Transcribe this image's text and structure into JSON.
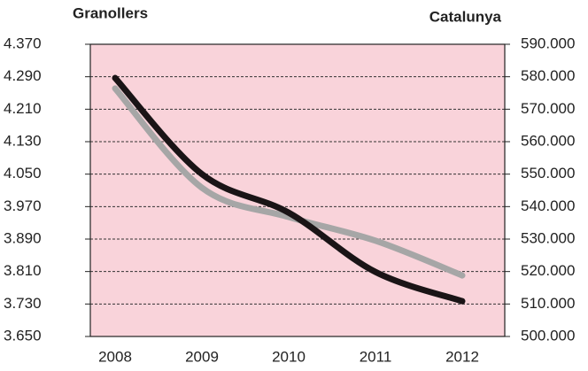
{
  "chart_data": {
    "type": "line",
    "categories": [
      "2008",
      "2009",
      "2010",
      "2011",
      "2012"
    ],
    "series": [
      {
        "name": "Granollers",
        "color": "#1a1416",
        "values": [
          4287,
          4050,
          3955,
          3809,
          3737
        ]
      },
      {
        "name": "Catalunya",
        "color": "#a6a6a6",
        "axis": "y2",
        "values": [
          576400,
          545800,
          536800,
          529500,
          518800
        ]
      }
    ],
    "ylim": [
      3650,
      4370
    ],
    "yticks": [
      {
        "value": 3650,
        "label": "3.650"
      },
      {
        "value": 3730,
        "label": "3.730"
      },
      {
        "value": 3810,
        "label": "3.810"
      },
      {
        "value": 3890,
        "label": "3.890"
      },
      {
        "value": 3970,
        "label": "3.970"
      },
      {
        "value": 4050,
        "label": "4.050"
      },
      {
        "value": 4130,
        "label": "4.130"
      },
      {
        "value": 4210,
        "label": "4.210"
      },
      {
        "value": 4290,
        "label": "4.290"
      },
      {
        "value": 4370,
        "label": "4.370"
      }
    ],
    "y2lim": [
      500000,
      590000
    ],
    "y2ticks": [
      {
        "value": 500000,
        "label": "500.000"
      },
      {
        "value": 510000,
        "label": "510.000"
      },
      {
        "value": 520000,
        "label": "520.000"
      },
      {
        "value": 530000,
        "label": "530.000"
      },
      {
        "value": 540000,
        "label": "540.000"
      },
      {
        "value": 550000,
        "label": "550.000"
      },
      {
        "value": 560000,
        "label": "560.000"
      },
      {
        "value": 570000,
        "label": "570.000"
      },
      {
        "value": 580000,
        "label": "580.000"
      },
      {
        "value": 590000,
        "label": "590.000"
      }
    ],
    "grid": true,
    "background": "#f9d3da"
  }
}
